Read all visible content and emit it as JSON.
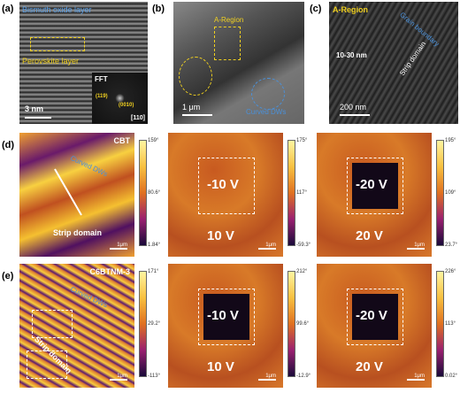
{
  "panel_labels": [
    "(a)",
    "(b)",
    "(c)",
    "(d)",
    "(e)"
  ],
  "a": {
    "top_layer": "Bismuth oxide layer",
    "middle_layer": "Perovskite layer",
    "fft": "FFT",
    "spot1": "(119)",
    "spot2": "(0010)",
    "zone": "[110]",
    "scale": "3 nm"
  },
  "b": {
    "region": "A-Region",
    "scale": "1 μm",
    "walls": "Curved DWs"
  },
  "c": {
    "region": "A-Region",
    "boundary": "Grain boundary",
    "width": "10-30 nm",
    "domain": "Strip domain",
    "scale": "200 nm"
  },
  "rows": [
    {
      "sample": "CBT",
      "walls": "Curved DWs",
      "domain": "Strip domain",
      "maps": [
        {
          "colorbar": [
            "159°",
            "80.6°",
            "1.84°"
          ],
          "scale": "1μm"
        },
        {
          "bias_box": "-10 V",
          "bias": "10 V",
          "colorbar": [
            "175°",
            "117°",
            "-59.3°"
          ],
          "scale": "1μm"
        },
        {
          "bias_box": "-20 V",
          "bias": "20 V",
          "colorbar": [
            "195°",
            "109°",
            "23.7°"
          ],
          "scale": "1μm"
        }
      ]
    },
    {
      "sample": "C6BTNM-3",
      "walls": "Curved DWs",
      "domain": "Strip domain",
      "maps": [
        {
          "colorbar": [
            "171°",
            "29.2°",
            "-113°"
          ],
          "scale": "1μm"
        },
        {
          "bias_box": "-10 V",
          "bias": "10 V",
          "colorbar": [
            "212°",
            "99.6°",
            "-12.9°"
          ],
          "scale": "1μm"
        },
        {
          "bias_box": "-20 V",
          "bias": "20 V",
          "colorbar": [
            "226°",
            "113°",
            "0.02°"
          ],
          "scale": "1μm"
        }
      ]
    }
  ]
}
